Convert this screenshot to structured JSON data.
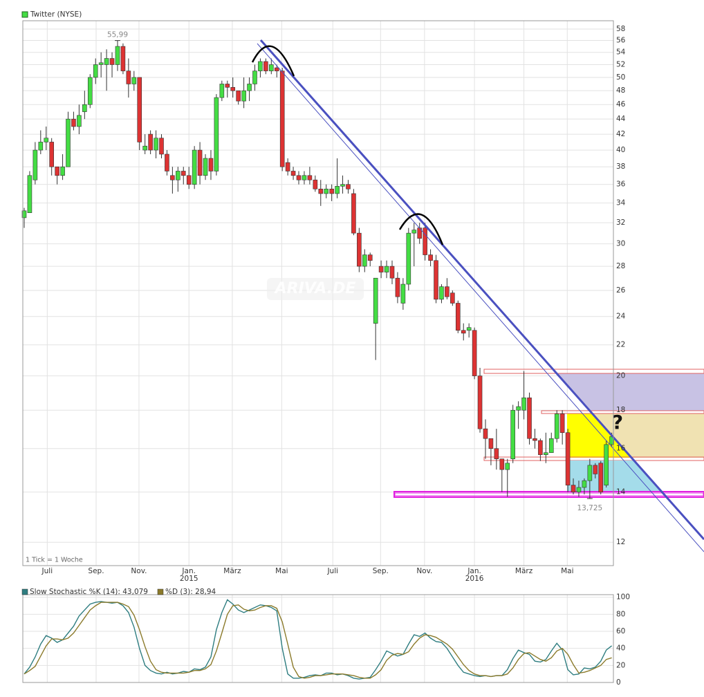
{
  "chart_data": [
    {
      "type": "candlestick",
      "series": [
        {
          "name": "Twitter (NYSE)",
          "open": [
            32.5,
            33,
            36.5,
            40,
            41,
            41,
            38,
            37,
            38,
            44,
            43,
            45,
            46,
            50,
            52,
            52,
            53,
            52,
            55,
            51,
            49,
            50,
            40,
            42,
            40,
            41.5,
            39.5,
            37,
            36.5,
            37.5,
            37,
            36,
            40,
            37,
            39,
            37.5,
            47,
            49,
            48.5,
            48,
            46.5,
            48,
            49,
            51,
            52.5,
            51,
            51.5,
            51,
            38.5,
            37.5,
            37,
            36.5,
            37,
            36.5,
            35.5,
            35,
            35.5,
            35,
            35.8,
            36,
            35,
            31,
            28,
            29,
            23.5,
            28,
            27.5,
            28,
            27,
            25,
            26.5,
            31,
            31.5,
            31.5,
            29,
            28.5,
            25.3,
            26.3,
            25.8,
            25,
            23,
            23,
            23,
            20,
            17,
            16.5,
            16,
            15.5,
            15,
            15.5,
            18,
            18,
            18.7,
            16.5,
            16.4,
            15.7,
            15.8,
            16.5,
            17.8,
            16.8,
            14.3,
            14,
            14.2,
            14.5,
            15.2,
            15.3,
            14.3,
            16.2
          ],
          "high": [
            33.5,
            37.5,
            41,
            42.5,
            43,
            41.5,
            38,
            39.5,
            45,
            45,
            46,
            48,
            50.5,
            53,
            54,
            54.5,
            54,
            55.99,
            55.5,
            53,
            51,
            50,
            42,
            42.5,
            42.5,
            42,
            40,
            38,
            38,
            38,
            38,
            40.5,
            41,
            39.5,
            40,
            47.5,
            49.5,
            49.5,
            50,
            48,
            50,
            50,
            52,
            53,
            53,
            53,
            52,
            51.5,
            39,
            38,
            37.5,
            37.5,
            38,
            37,
            36.5,
            36,
            36,
            39,
            37,
            36.5,
            35.5,
            31.5,
            29.5,
            29.2,
            27,
            28.5,
            28.5,
            28.5,
            27.5,
            27,
            31.5,
            32,
            32,
            32,
            29.5,
            29,
            26.5,
            27,
            26,
            25.2,
            23.5,
            23.5,
            23.2,
            20.5,
            17.5,
            16.5,
            17,
            15.5,
            15.5,
            18.3,
            18.5,
            20.3,
            19,
            17,
            16.5,
            16.8,
            16.8,
            18,
            18,
            17,
            14.6,
            14.5,
            14.6,
            15.5,
            15.3,
            15.4,
            16.4,
            16.8
          ],
          "low": [
            31.5,
            33,
            36,
            39.5,
            40,
            37,
            36,
            36.5,
            38,
            42.5,
            42,
            44,
            45.5,
            49,
            50,
            48,
            50,
            51,
            50.5,
            47,
            48,
            40,
            39.5,
            39.5,
            39,
            39,
            37,
            35,
            35.2,
            36,
            35.5,
            35.5,
            36,
            36.5,
            36.5,
            37,
            46.5,
            47,
            47,
            46,
            45.5,
            46.5,
            48,
            50,
            50.5,
            50.5,
            50,
            37.5,
            37,
            36.5,
            36,
            36,
            36,
            35.2,
            33.7,
            34.5,
            34.2,
            34.5,
            35,
            35,
            30.8,
            27.5,
            27.5,
            28,
            21,
            27,
            27,
            26.5,
            25,
            24.5,
            26,
            28,
            30,
            28.5,
            28,
            25,
            25,
            25.3,
            24.8,
            22.8,
            22.3,
            22.5,
            19.8,
            16.8,
            15.5,
            15.2,
            15,
            14,
            13.8,
            15.3,
            17,
            17.5,
            16.2,
            16,
            15.4,
            15.3,
            15.8,
            16.3,
            16.2,
            14,
            13.9,
            13.8,
            13.9,
            13.725,
            14.6,
            13.9,
            14.2,
            16.1
          ],
          "close": [
            33.2,
            37,
            40,
            41,
            41.5,
            38,
            37,
            38,
            44,
            43,
            44.5,
            46,
            50,
            52,
            52.3,
            53,
            52,
            55,
            51,
            49,
            50,
            41,
            40.5,
            40,
            41.5,
            39.5,
            37.5,
            36.5,
            37.5,
            37,
            36,
            40,
            37,
            39,
            37.5,
            47,
            49,
            48.5,
            48,
            46.5,
            48,
            49,
            51,
            52.5,
            51,
            52,
            51,
            38,
            37.5,
            37,
            36.5,
            37,
            36.5,
            35.5,
            35,
            35.5,
            35,
            35.8,
            36,
            35.5,
            31,
            28,
            29,
            28.5,
            27,
            27.5,
            28,
            27,
            25.5,
            26.5,
            31,
            31.3,
            30.5,
            29,
            28.5,
            25.3,
            26.3,
            25.5,
            25,
            23,
            22.8,
            23.2,
            20,
            17,
            16.5,
            16,
            15.5,
            15,
            15.3,
            18,
            18.2,
            18.7,
            16.5,
            16.4,
            15.7,
            15.8,
            16.5,
            17.8,
            16.8,
            14.3,
            14,
            14.2,
            14.5,
            15.2,
            14.8,
            14,
            16.2,
            16.6
          ]
        }
      ],
      "up_color": "#44dd44",
      "down_color": "#dd3333",
      "log_scale": true,
      "grid": true,
      "xlim": [
        -0.25,
        107.3
      ],
      "xticks": [
        {
          "value": 4.2,
          "label": "Juli"
        },
        {
          "value": 13.1,
          "label": "Sep."
        },
        {
          "value": 20.9,
          "label": "Nov."
        },
        {
          "value": 30,
          "label": "Jan."
        },
        {
          "value": 37.9,
          "label": "März"
        },
        {
          "value": 46.9,
          "label": "Mai"
        },
        {
          "value": 56.2,
          "label": "Juli"
        },
        {
          "value": 64.9,
          "label": "Sep."
        },
        {
          "value": 72.9,
          "label": "Nov."
        },
        {
          "value": 82,
          "label": "Jan."
        },
        {
          "value": 91,
          "label": "März"
        },
        {
          "value": 98.9,
          "label": "Mai"
        }
      ],
      "year_labels": [
        {
          "value": 30,
          "label": "2015"
        },
        {
          "value": 82,
          "label": "2016"
        }
      ],
      "ylim": [
        11.17,
        59.5
      ],
      "yticks": [
        12,
        14,
        16,
        18,
        20,
        22,
        24,
        26,
        28,
        30,
        32,
        34,
        36,
        38,
        40,
        42,
        44,
        46,
        48,
        50,
        52,
        54,
        56,
        58
      ],
      "high_label": {
        "index": 17,
        "value": 55.99,
        "label": "55,99"
      },
      "low_label": {
        "index": 103,
        "value": 13.725,
        "label": "13,725"
      },
      "footnote": "1 Tick = 1 Woche",
      "watermark": "ARIVA.DE",
      "annotation": "?"
    },
    {
      "type": "line",
      "series": [
        {
          "name": "Slow Stochastic %K (14): 43,079",
          "color": "#2e7d80",
          "values": [
            10,
            18,
            30,
            45,
            55,
            52,
            47,
            50,
            58,
            66,
            78,
            85,
            92,
            94,
            95,
            94,
            93,
            94,
            90,
            82,
            65,
            40,
            20,
            14,
            11,
            10,
            12,
            10,
            11,
            13,
            12,
            16,
            15,
            18,
            30,
            62,
            82,
            97,
            92,
            85,
            82,
            85,
            88,
            91,
            90,
            88,
            84,
            40,
            10,
            5,
            5,
            6,
            8,
            9,
            8,
            11,
            11,
            9,
            10,
            8,
            5,
            4,
            5,
            6,
            15,
            25,
            37,
            34,
            31,
            33,
            45,
            56,
            54,
            58,
            52,
            48,
            47,
            40,
            30,
            20,
            12,
            10,
            8,
            7,
            8,
            7,
            8,
            8,
            15,
            28,
            38,
            35,
            33,
            25,
            24,
            27,
            37,
            46,
            38,
            15,
            9,
            10,
            17,
            16,
            18,
            25,
            38,
            43.079
          ]
        },
        {
          "name": "%D (3): 28,94",
          "color": "#8b7a2a",
          "values": [
            10,
            14,
            19,
            31,
            43,
            51,
            51,
            50,
            52,
            58,
            67,
            76,
            85,
            90,
            94,
            94,
            94,
            94,
            92,
            89,
            79,
            62,
            42,
            25,
            15,
            12,
            11,
            11,
            11,
            11,
            12,
            14,
            14,
            16,
            21,
            37,
            58,
            80,
            90,
            91,
            86,
            84,
            85,
            88,
            90,
            90,
            87,
            71,
            45,
            18,
            7,
            5,
            6,
            8,
            8,
            9,
            10,
            10,
            10,
            9,
            8,
            6,
            5,
            5,
            9,
            15,
            26,
            32,
            34,
            33,
            36,
            45,
            52,
            56,
            55,
            53,
            49,
            45,
            39,
            30,
            21,
            14,
            10,
            8,
            8,
            7,
            8,
            8,
            10,
            17,
            27,
            34,
            35,
            31,
            27,
            25,
            29,
            37,
            40,
            33,
            21,
            11,
            12,
            14,
            17,
            20,
            27,
            28.94
          ]
        }
      ],
      "ylim": [
        0,
        103
      ],
      "yticks": [
        0,
        20,
        40,
        60,
        80,
        100
      ],
      "grid": true
    }
  ]
}
